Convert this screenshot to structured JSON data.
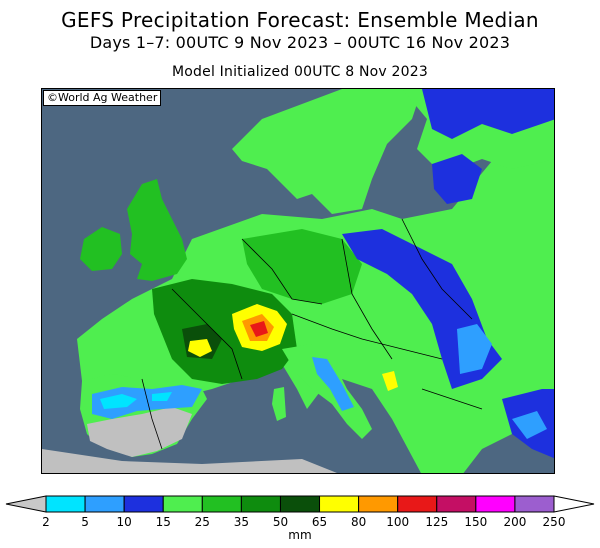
{
  "title": "GEFS Precipitation Forecast: Ensemble Median",
  "subtitle": "Days 1–7: 00UTC 9 Nov 2023 – 00UTC 16 Nov 2023",
  "init": "Model Initialized 00UTC 8 Nov 2023",
  "credit": "©World Ag Weather",
  "colorbar": {
    "unit": "mm",
    "ticks": [
      "2",
      "5",
      "10",
      "15",
      "25",
      "35",
      "50",
      "65",
      "80",
      "100",
      "125",
      "150",
      "200",
      "250"
    ],
    "colors": [
      "#00e4ff",
      "#2e9fff",
      "#1d30de",
      "#4fee4f",
      "#22c022",
      "#0e8c0e",
      "#0a4f0a",
      "#ffff00",
      "#ff9900",
      "#e81818",
      "#c40f64",
      "#ff00ff",
      "#9c5ecf"
    ],
    "under_color": "#c8c8c8",
    "over_color": "#ffffff"
  },
  "palette": {
    "sea": "#4d6781",
    "no_data_land": "#c0c0c0"
  }
}
